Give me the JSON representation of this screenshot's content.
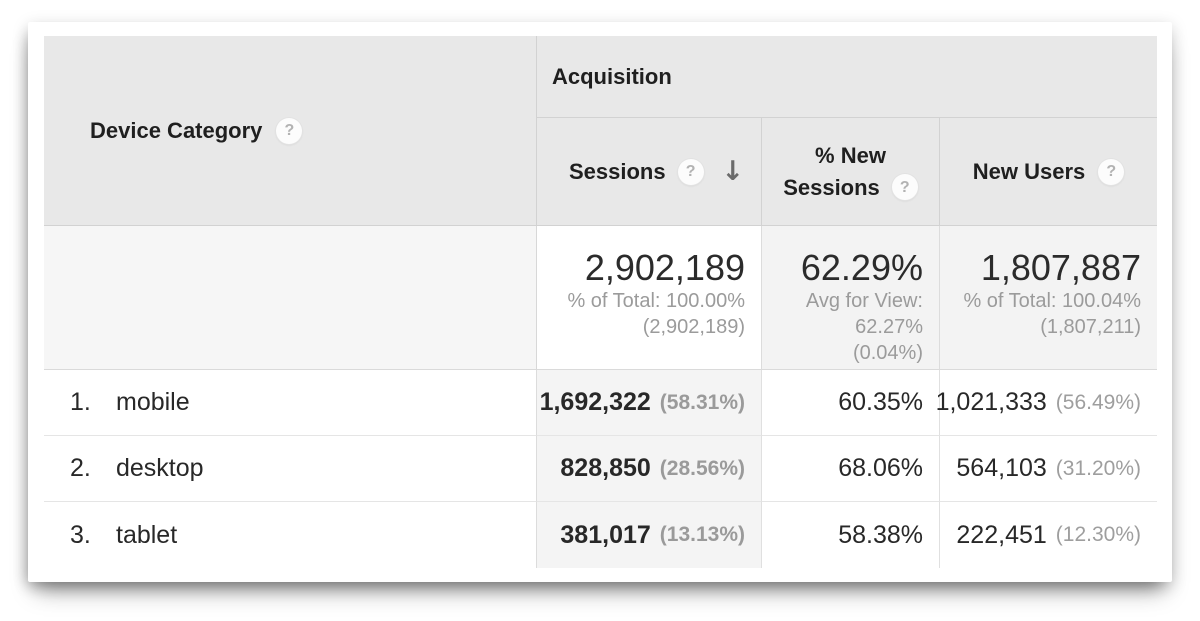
{
  "table": {
    "dimension_header": {
      "label": "Device Category"
    },
    "group_header": {
      "label": "Acquisition"
    },
    "columns": {
      "sessions": {
        "label": "Sessions",
        "sorted": "descending"
      },
      "new_sessions": {
        "label_line1": "% New",
        "label_line2": "Sessions"
      },
      "new_users": {
        "label": "New Users"
      }
    },
    "summary": {
      "sessions": {
        "value": "2,902,189",
        "sub1": "% of Total: 100.00%",
        "sub2": "(2,902,189)"
      },
      "new_sessions": {
        "value": "62.29%",
        "sub1": "Avg for View:",
        "sub2": "62.27%",
        "sub3": "(0.04%)"
      },
      "new_users": {
        "value": "1,807,887",
        "sub1": "% of Total: 100.04%",
        "sub2": "(1,807,211)"
      }
    },
    "rows": [
      {
        "index": "1.",
        "device": "mobile",
        "sessions": "1,692,322",
        "sessions_pct": "(58.31%)",
        "new_sessions": "60.35%",
        "new_users": "1,021,333",
        "new_users_pct": "(56.49%)"
      },
      {
        "index": "2.",
        "device": "desktop",
        "sessions": "828,850",
        "sessions_pct": "(28.56%)",
        "new_sessions": "68.06%",
        "new_users": "564,103",
        "new_users_pct": "(31.20%)"
      },
      {
        "index": "3.",
        "device": "tablet",
        "sessions": "381,017",
        "sessions_pct": "(13.13%)",
        "new_sessions": "58.38%",
        "new_users": "222,451",
        "new_users_pct": "(12.30%)"
      }
    ]
  },
  "icons": {
    "help": "?",
    "sort_desc": "↓"
  },
  "colors": {
    "header_bg": "#e8e8e8",
    "sorted_column_bg": "#f4f4f4",
    "summary_metric_bg": "#f3f3f3",
    "border_strong": "#d2d2d2",
    "border_light": "#e5e5e5",
    "text_primary": "#282828",
    "text_secondary": "#9b9b9b"
  }
}
